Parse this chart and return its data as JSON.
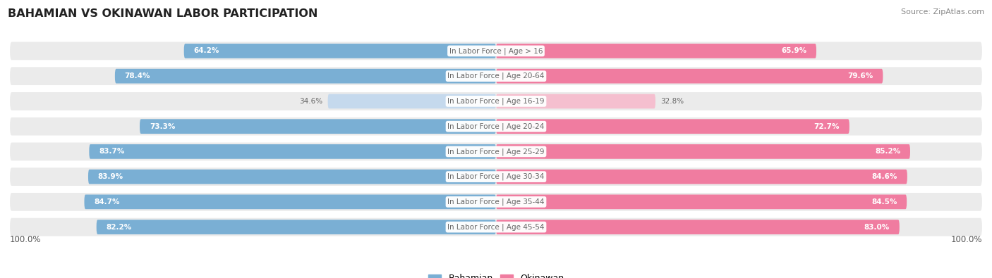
{
  "title": "BAHAMIAN VS OKINAWAN LABOR PARTICIPATION",
  "source": "Source: ZipAtlas.com",
  "categories": [
    "In Labor Force | Age > 16",
    "In Labor Force | Age 20-64",
    "In Labor Force | Age 16-19",
    "In Labor Force | Age 20-24",
    "In Labor Force | Age 25-29",
    "In Labor Force | Age 30-34",
    "In Labor Force | Age 35-44",
    "In Labor Force | Age 45-54"
  ],
  "bahamian": [
    64.2,
    78.4,
    34.6,
    73.3,
    83.7,
    83.9,
    84.7,
    82.2
  ],
  "okinawan": [
    65.9,
    79.6,
    32.8,
    72.7,
    85.2,
    84.6,
    84.5,
    83.0
  ],
  "bahamian_color": "#7aafd4",
  "bahamian_light_color": "#c5d9ed",
  "okinawan_color": "#f07ca0",
  "okinawan_light_color": "#f5bfcf",
  "bg_color": "#ffffff",
  "row_bg_color": "#ebebeb",
  "max_val": 100.0,
  "legend_bahamian": "Bahamian",
  "legend_okinawan": "Okinawan"
}
